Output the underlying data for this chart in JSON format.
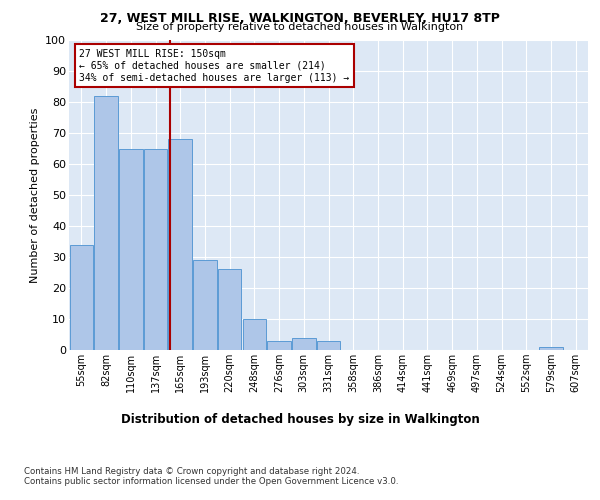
{
  "title": "27, WEST MILL RISE, WALKINGTON, BEVERLEY, HU17 8TP",
  "subtitle": "Size of property relative to detached houses in Walkington",
  "xlabel": "Distribution of detached houses by size in Walkington",
  "ylabel": "Number of detached properties",
  "bin_labels": [
    "55sqm",
    "82sqm",
    "110sqm",
    "137sqm",
    "165sqm",
    "193sqm",
    "220sqm",
    "248sqm",
    "276sqm",
    "303sqm",
    "331sqm",
    "358sqm",
    "386sqm",
    "414sqm",
    "441sqm",
    "469sqm",
    "497sqm",
    "524sqm",
    "552sqm",
    "579sqm",
    "607sqm"
  ],
  "bar_heights": [
    34,
    82,
    65,
    65,
    68,
    29,
    26,
    10,
    3,
    4,
    3,
    0,
    0,
    0,
    0,
    0,
    0,
    0,
    0,
    1,
    0
  ],
  "bar_color": "#aec6e8",
  "bar_edge_color": "#5b9bd5",
  "vline_index": 3.57,
  "vline_color": "#aa0000",
  "annotation_text": "27 WEST MILL RISE: 150sqm\n← 65% of detached houses are smaller (214)\n34% of semi-detached houses are larger (113) →",
  "annotation_box_color": "#ffffff",
  "annotation_box_edge": "#aa0000",
  "ylim": [
    0,
    100
  ],
  "yticks": [
    0,
    10,
    20,
    30,
    40,
    50,
    60,
    70,
    80,
    90,
    100
  ],
  "background_color": "#dde8f5",
  "footer_line1": "Contains HM Land Registry data © Crown copyright and database right 2024.",
  "footer_line2": "Contains public sector information licensed under the Open Government Licence v3.0."
}
